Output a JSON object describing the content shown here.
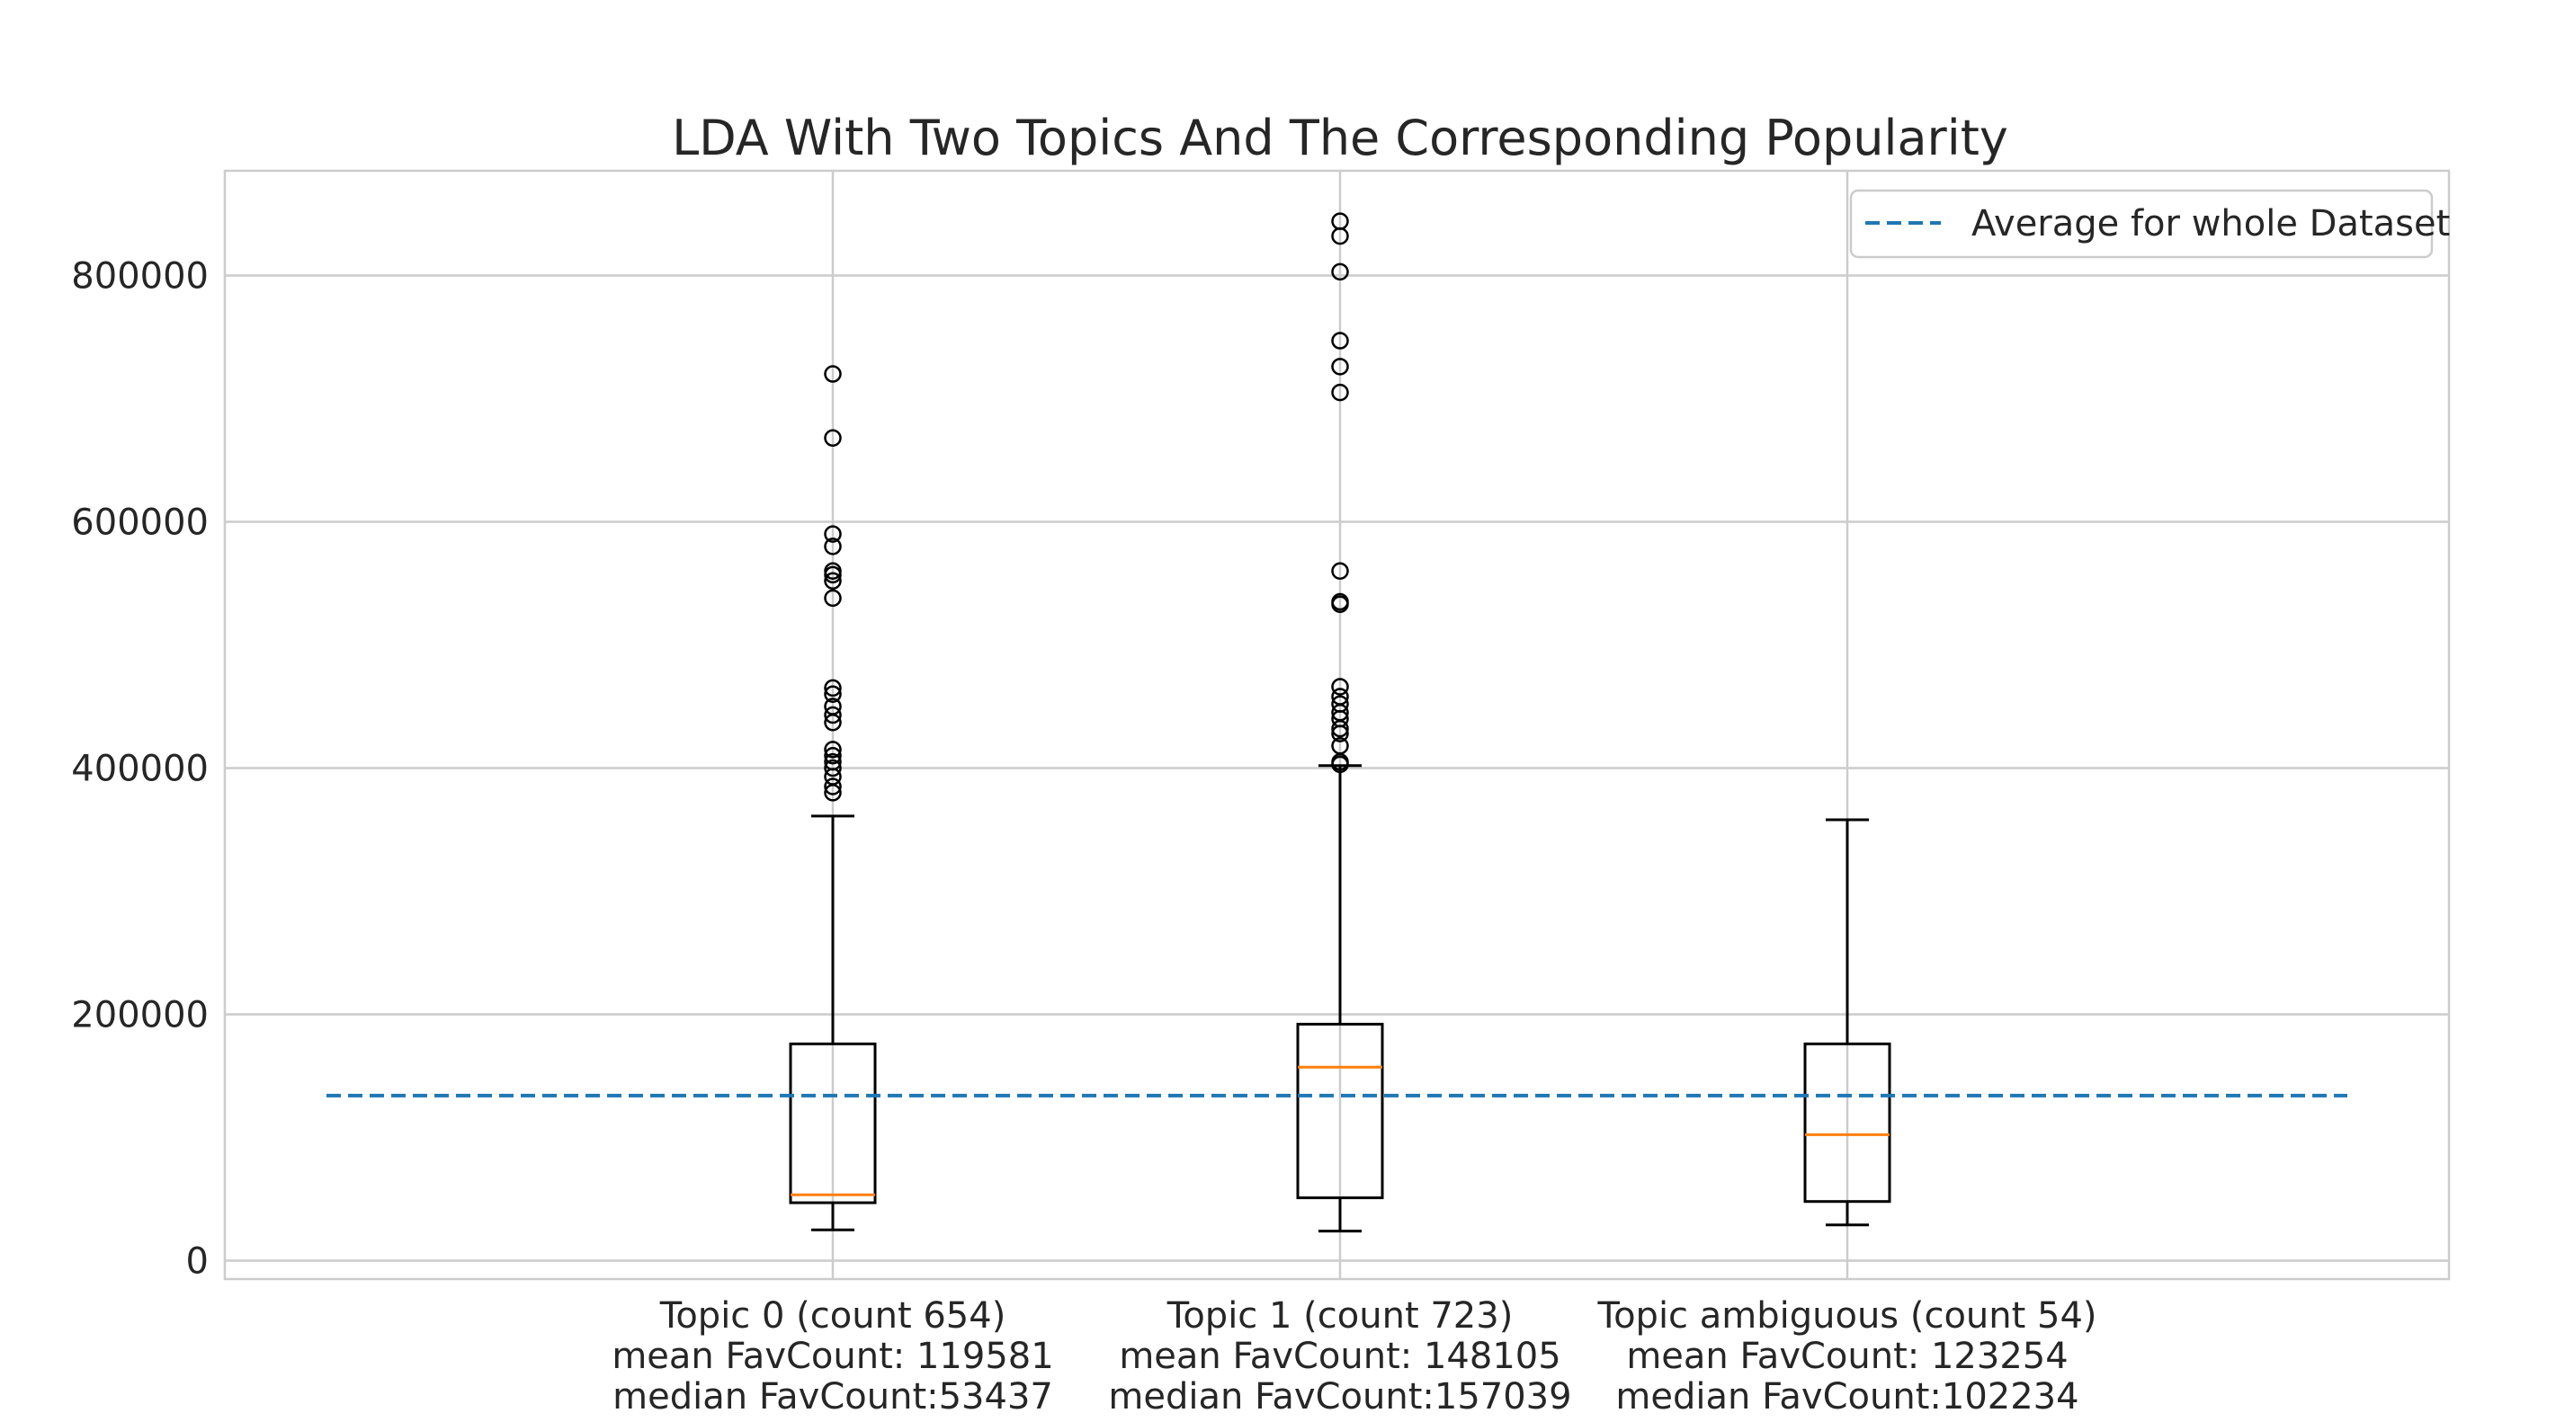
{
  "chart_data": {
    "type": "box",
    "title": "LDA With Two Topics And The Corresponding Popularity",
    "xlabel": "",
    "ylabel": "",
    "ylim": [
      -15000,
      885000
    ],
    "yticks": [
      0,
      200000,
      400000,
      600000,
      800000
    ],
    "ytick_labels": [
      "0",
      "200000",
      "400000",
      "600000",
      "800000"
    ],
    "grid": true,
    "legend": {
      "placement": "top-right",
      "entries": [
        {
          "label": "Average for whole Dataset",
          "style": "dashed",
          "color": "#1f77b4"
        }
      ]
    },
    "reference_line": {
      "label": "Average for whole Dataset",
      "value": 134000,
      "color": "#1f77b4",
      "style": "dashed"
    },
    "categories": [
      {
        "lines": [
          "Topic 0 (count 654)",
          "mean FavCount: 119581",
          "median FavCount:53437"
        ],
        "whisker_low": 25000,
        "q1": 47000,
        "median": 53437,
        "q3": 176000,
        "whisker_high": 361000,
        "outliers": [
          380000,
          385000,
          393000,
          400000,
          405000,
          410000,
          415000,
          437000,
          443000,
          450000,
          460000,
          465000,
          538000,
          552000,
          557000,
          560000,
          580000,
          590000,
          668000,
          720000
        ]
      },
      {
        "lines": [
          "Topic 1 (count 723)",
          "mean FavCount: 148105",
          "median FavCount:157039"
        ],
        "whisker_low": 24000,
        "q1": 51000,
        "median": 157039,
        "q3": 192000,
        "whisker_high": 402000,
        "outliers": [
          403000,
          405000,
          418000,
          428000,
          432000,
          440000,
          445000,
          452000,
          458000,
          466000,
          533000,
          535000,
          560000,
          705000,
          726000,
          747000,
          803000,
          832000,
          844000
        ]
      },
      {
        "lines": [
          "Topic ambiguous (count 54)",
          "mean FavCount: 123254",
          "median FavCount:102234"
        ],
        "whisker_low": 29000,
        "q1": 48000,
        "median": 102234,
        "q3": 176000,
        "whisker_high": 358000,
        "outliers": []
      }
    ],
    "colors": {
      "box": "#000000",
      "median": "#ff7f0e",
      "grid": "#cccccc",
      "axes_edge": "#cccccc",
      "average_line": "#1f77b4"
    }
  }
}
